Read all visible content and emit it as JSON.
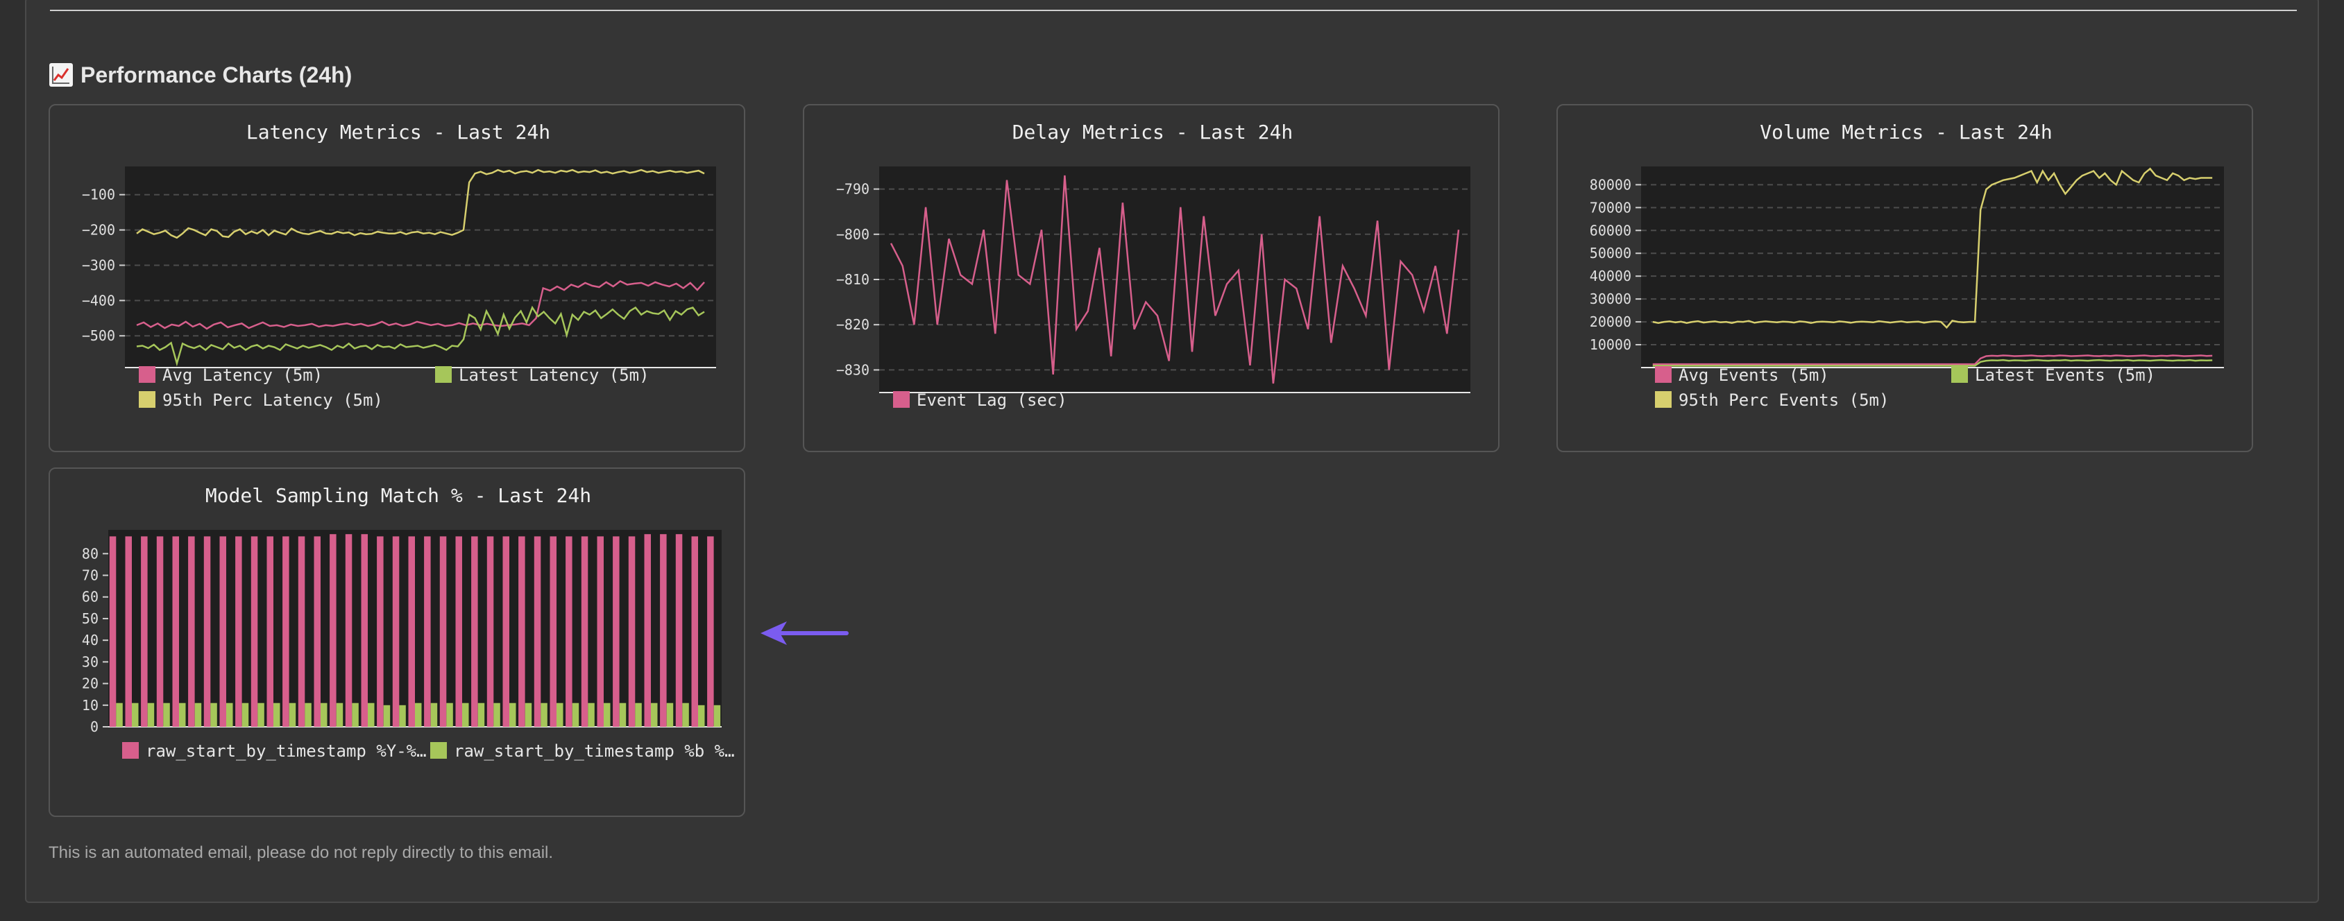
{
  "section": {
    "icon": "chart-increasing-icon",
    "title": "Performance Charts (24h)"
  },
  "footer": "This is an automated email, please do not reply directly to this email.",
  "colors": {
    "pink": "#d75f8c",
    "green": "#a6c65a",
    "yellow": "#d7cf6e",
    "plot_bg": "#1f1f1f",
    "grid": "#444444"
  },
  "chart_data": [
    {
      "id": "latency",
      "type": "line",
      "title": "Latency Metrics - Last 24h",
      "ylim": [
        -590,
        -20
      ],
      "yticks": [
        -100,
        -200,
        -300,
        -400,
        -500
      ],
      "grid": true,
      "legend": "bottom",
      "series": [
        {
          "name": "Avg Latency (5m)",
          "color": "#d75f8c",
          "values": [
            -470,
            -462,
            -475,
            -465,
            -478,
            -468,
            -472,
            -460,
            -474,
            -466,
            -480,
            -468,
            -462,
            -476,
            -470,
            -465,
            -478,
            -470,
            -462,
            -472,
            -470,
            -475,
            -468,
            -472,
            -470,
            -466,
            -474,
            -470,
            -472,
            -468,
            -465,
            -470,
            -466,
            -472,
            -468,
            -460,
            -470,
            -465,
            -472,
            -468,
            -460,
            -465,
            -470,
            -466,
            -472,
            -470,
            -464,
            -470,
            -465,
            -470,
            -466,
            -470,
            -472,
            -470,
            -468,
            -465,
            -470,
            -450,
            -365,
            -372,
            -360,
            -370,
            -355,
            -362,
            -350,
            -358,
            -362,
            -348,
            -360,
            -345,
            -355,
            -352,
            -350,
            -358,
            -348,
            -355,
            -360,
            -352,
            -365,
            -350,
            -370,
            -348
          ]
        },
        {
          "name": "Latest Latency (5m)",
          "color": "#a6c65a",
          "values": [
            -530,
            -528,
            -535,
            -525,
            -540,
            -532,
            -520,
            -578,
            -522,
            -530,
            -535,
            -528,
            -540,
            -526,
            -532,
            -538,
            -522,
            -534,
            -528,
            -540,
            -530,
            -526,
            -536,
            -528,
            -532,
            -540,
            -524,
            -530,
            -536,
            -528,
            -534,
            -530,
            -526,
            -532,
            -540,
            -528,
            -534,
            -522,
            -536,
            -530,
            -528,
            -538,
            -526,
            -532,
            -530,
            -536,
            -524,
            -532,
            -530,
            -528,
            -534,
            -530,
            -526,
            -532,
            -540,
            -528,
            -530,
            -510,
            -440,
            -450,
            -482,
            -430,
            -460,
            -495,
            -440,
            -480,
            -448,
            -430,
            -462,
            -420,
            -445,
            -432,
            -450,
            -465,
            -438,
            -498,
            -440,
            -455,
            -432,
            -440,
            -428,
            -450,
            -438,
            -425,
            -440,
            -452,
            -430,
            -420,
            -440,
            -430,
            -436,
            -438,
            -428,
            -455,
            -430,
            -440,
            -425,
            -420,
            -442,
            -432
          ]
        },
        {
          "name": "95th Perc Latency (5m)",
          "color": "#d7cf6e",
          "values": [
            -210,
            -198,
            -205,
            -212,
            -208,
            -202,
            -215,
            -222,
            -210,
            -195,
            -200,
            -208,
            -215,
            -198,
            -203,
            -218,
            -220,
            -205,
            -198,
            -212,
            -204,
            -210,
            -200,
            -215,
            -202,
            -208,
            -213,
            -196,
            -205,
            -210,
            -212,
            -207,
            -203,
            -210,
            -211,
            -205,
            -209,
            -207,
            -215,
            -209,
            -212,
            -211,
            -205,
            -208,
            -210,
            -210,
            -206,
            -212,
            -207,
            -205,
            -210,
            -208,
            -212,
            -206,
            -210,
            -214,
            -208,
            -200,
            -65,
            -40,
            -35,
            -42,
            -38,
            -30,
            -36,
            -32,
            -40,
            -35,
            -33,
            -38,
            -30,
            -36,
            -34,
            -38,
            -32,
            -35,
            -30,
            -37,
            -34,
            -36,
            -31,
            -38,
            -35,
            -40,
            -36,
            -33,
            -38,
            -35,
            -30,
            -36,
            -33,
            -38,
            -35,
            -32,
            -36,
            -34,
            -38,
            -35,
            -32,
            -40
          ]
        }
      ]
    },
    {
      "id": "delay",
      "type": "line",
      "title": "Delay Metrics - Last 24h",
      "ylim": [
        -835,
        -785
      ],
      "yticks": [
        -790,
        -800,
        -810,
        -820,
        -830
      ],
      "grid": true,
      "legend": "bottom",
      "series": [
        {
          "name": "Event Lag (sec)",
          "color": "#d75f8c",
          "values": [
            -802,
            -807,
            -820,
            -794,
            -820,
            -801,
            -809,
            -811,
            -799,
            -822,
            -788,
            -809,
            -811,
            -799,
            -831,
            -787,
            -821,
            -817,
            -803,
            -827,
            -793,
            -821,
            -815,
            -818,
            -828,
            -794,
            -826,
            -796,
            -818,
            -811,
            -808,
            -829,
            -800,
            -833,
            -810,
            -812,
            -821,
            -796,
            -824,
            -807,
            -812,
            -818,
            -797,
            -830,
            -806,
            -809,
            -817,
            -807,
            -822,
            -799
          ]
        }
      ]
    },
    {
      "id": "volume",
      "type": "line",
      "title": "Volume Metrics - Last 24h",
      "ylim": [
        0,
        88000
      ],
      "yticks": [
        10000,
        20000,
        30000,
        40000,
        50000,
        60000,
        70000,
        80000
      ],
      "grid": true,
      "legend": "bottom",
      "series": [
        {
          "name": "Avg Events (5m)",
          "color": "#d75f8c",
          "values": [
            1500,
            1500,
            1500,
            1500,
            1500,
            1500,
            1500,
            1500,
            1500,
            1500,
            1500,
            1500,
            1500,
            1500,
            1500,
            1500,
            1500,
            1500,
            1500,
            1500,
            1500,
            1500,
            1500,
            1500,
            1500,
            1500,
            1500,
            1500,
            1500,
            1500,
            1500,
            1500,
            1500,
            1500,
            1500,
            1500,
            1500,
            1500,
            1500,
            1500,
            1500,
            1500,
            1500,
            1500,
            1500,
            1500,
            1500,
            1500,
            1500,
            1500,
            1500,
            1500,
            1500,
            1500,
            1500,
            1500,
            1500,
            1500,
            4000,
            5000,
            5200,
            5100,
            5300,
            5200,
            5000,
            5100,
            5200,
            5300,
            5100,
            5000,
            5200,
            5100,
            5300,
            5200,
            5000,
            5100,
            5200,
            5300,
            5100,
            5000,
            5200,
            5100,
            5300,
            5200,
            5000,
            5100,
            5200,
            5300,
            5100,
            5000,
            5200,
            5100,
            5300,
            5200,
            5000,
            5100,
            5200,
            5300,
            5100,
            5200
          ]
        },
        {
          "name": "Latest Events (5m)",
          "color": "#a6c65a",
          "values": [
            800,
            800,
            800,
            800,
            800,
            800,
            800,
            800,
            800,
            800,
            800,
            800,
            800,
            800,
            800,
            800,
            800,
            800,
            800,
            800,
            800,
            800,
            800,
            800,
            800,
            800,
            800,
            800,
            800,
            800,
            800,
            800,
            800,
            800,
            800,
            800,
            800,
            800,
            800,
            800,
            800,
            800,
            800,
            800,
            800,
            800,
            800,
            800,
            800,
            800,
            800,
            800,
            800,
            800,
            800,
            800,
            800,
            800,
            2500,
            3000,
            3200,
            3100,
            3300,
            3000,
            3200,
            3100,
            3000,
            3200,
            3300,
            3100,
            3000,
            3200,
            3100,
            3300,
            3000,
            3200,
            3100,
            3000,
            3200,
            3300,
            3100,
            3000,
            3200,
            3100,
            3300,
            3000,
            3200,
            3100,
            3000,
            3200,
            3300,
            3100,
            3000,
            3200,
            3100,
            3300,
            3000,
            3200,
            3100,
            3200
          ]
        },
        {
          "name": "95th Perc Events (5m)",
          "color": "#d7cf6e",
          "values": [
            20000,
            19500,
            20000,
            20200,
            19800,
            20100,
            19500,
            20000,
            20300,
            19700,
            20000,
            20200,
            19800,
            20000,
            19500,
            20100,
            20000,
            20400,
            19600,
            20000,
            20200,
            20000,
            19800,
            20100,
            20000,
            19700,
            20200,
            20000,
            19500,
            20000,
            20100,
            20000,
            19800,
            20200,
            20000,
            19600,
            20000,
            20100,
            20000,
            19800,
            20300,
            20000,
            19700,
            20000,
            20200,
            19800,
            20000,
            20100,
            19600,
            20000,
            20200,
            20000,
            17500,
            20500,
            20000,
            19800,
            20000,
            20000,
            69000,
            78000,
            80000,
            81000,
            82000,
            82500,
            83000,
            84000,
            85000,
            86000,
            81000,
            86000,
            82000,
            85000,
            80000,
            76000,
            79000,
            82000,
            84000,
            85000,
            86000,
            83000,
            85000,
            82000,
            80000,
            86000,
            84000,
            82000,
            81000,
            85000,
            87000,
            84000,
            83000,
            82000,
            85000,
            84000,
            82000,
            83000,
            82500,
            83000,
            83000,
            83000
          ]
        }
      ]
    },
    {
      "id": "sampling",
      "type": "bar",
      "title": "Model Sampling Match % - Last 24h",
      "ylim": [
        0,
        91
      ],
      "yticks": [
        0,
        10,
        20,
        30,
        40,
        50,
        60,
        70,
        80
      ],
      "grid": false,
      "legend": "bottom",
      "series": [
        {
          "name": "raw_start_by_timestamp %Y-%…",
          "color": "#d75f8c",
          "values": [
            88,
            88,
            88,
            88,
            88,
            88,
            88,
            88,
            88,
            88,
            88,
            88,
            88,
            88,
            89,
            89,
            89,
            88,
            88,
            88,
            88,
            88,
            88,
            88,
            88,
            88,
            88,
            88,
            88,
            88,
            88,
            88,
            88,
            88,
            89,
            89,
            89,
            88,
            88
          ]
        },
        {
          "name": "raw_start_by_timestamp %b %…",
          "color": "#a6c65a",
          "values": [
            11,
            11,
            11,
            11,
            11,
            11,
            11,
            11,
            11,
            11,
            11,
            11,
            11,
            11,
            11,
            11,
            11,
            10,
            10,
            11,
            11,
            11,
            11,
            11,
            11,
            11,
            11,
            11,
            11,
            11,
            11,
            11,
            11,
            11,
            11,
            11,
            11,
            10,
            10
          ]
        }
      ]
    }
  ]
}
